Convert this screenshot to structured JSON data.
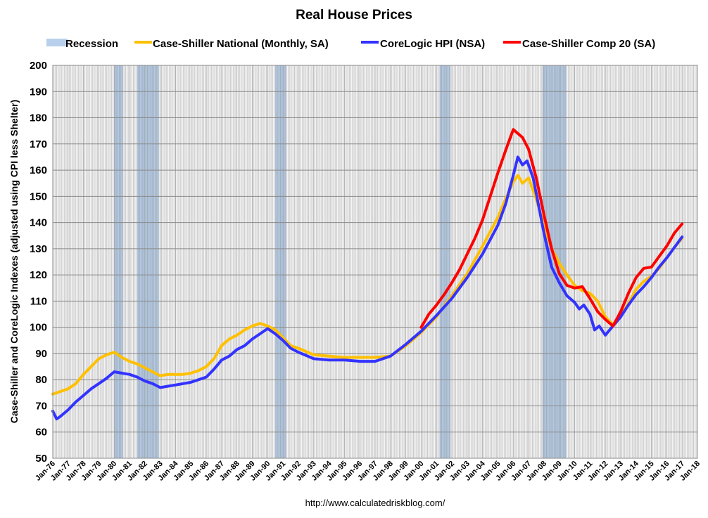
{
  "chart_data": {
    "type": "line",
    "title": "Real House Prices",
    "xlabel": "",
    "ylabel": "Case-Shiller and CoreLogic Indexes (adjusted using CPI less Shelter)",
    "ylim": [
      50,
      200
    ],
    "yticks": [
      50,
      60,
      70,
      80,
      90,
      100,
      110,
      120,
      130,
      140,
      150,
      160,
      170,
      180,
      190,
      200
    ],
    "xlim": [
      1976,
      2018
    ],
    "xtick_labels": [
      "Jan-76",
      "Jan-77",
      "Jan-78",
      "Jan-79",
      "Jan-80",
      "Jan-81",
      "Jan-82",
      "Jan-83",
      "Jan-84",
      "Jan-85",
      "Jan-86",
      "Jan-87",
      "Jan-88",
      "Jan-89",
      "Jan-90",
      "Jan-91",
      "Jan-92",
      "Jan-93",
      "Jan-94",
      "Jan-95",
      "Jan-96",
      "Jan-97",
      "Jan-98",
      "Jan-99",
      "Jan-00",
      "Jan-01",
      "Jan-02",
      "Jan-03",
      "Jan-04",
      "Jan-05",
      "Jan-06",
      "Jan-07",
      "Jan-08",
      "Jan-09",
      "Jan-10",
      "Jan-11",
      "Jan-12",
      "Jan-13",
      "Jan-14",
      "Jan-15",
      "Jan-16",
      "Jan-17",
      "Jan-18"
    ],
    "grid": true,
    "legend_position": "top",
    "source": "http://www.calculatedriskblog.com/",
    "recessions": {
      "name": "Recession",
      "color": "#b8d0ec",
      "periods": [
        [
          1980.0,
          1980.58
        ],
        [
          1981.5,
          1982.9
        ],
        [
          1990.5,
          1991.2
        ],
        [
          2001.2,
          2001.9
        ],
        [
          2007.9,
          2009.45
        ]
      ]
    },
    "series": [
      {
        "name": "Case-Shiller National (Monthly, SA)",
        "color": "#ffc000",
        "x": [
          1976,
          1976.5,
          1977,
          1977.5,
          1978,
          1978.5,
          1979,
          1979.5,
          1980,
          1980.5,
          1981,
          1981.5,
          1982,
          1982.5,
          1983,
          1983.5,
          1984,
          1984.5,
          1985,
          1985.5,
          1986,
          1986.5,
          1987,
          1987.5,
          1988,
          1988.5,
          1989,
          1989.5,
          1990,
          1990.5,
          1991,
          1991.5,
          1992,
          1993,
          1994,
          1995,
          1996,
          1997,
          1998,
          1999,
          2000,
          2001,
          2002,
          2003,
          2004,
          2005,
          2005.5,
          2006,
          2006.3,
          2006.6,
          2007,
          2007.5,
          2008,
          2008.5,
          2009,
          2009.5,
          2010,
          2010.5,
          2011,
          2011.5,
          2012,
          2012.5,
          2013,
          2013.5,
          2014,
          2014.5,
          2015,
          2015.5,
          2016,
          2016.5,
          2017
        ],
        "values": [
          74.5,
          75.5,
          76.5,
          78.5,
          82,
          85,
          88,
          89.5,
          90.5,
          88.5,
          87,
          86,
          84.5,
          83,
          81.5,
          82,
          82,
          82,
          82.5,
          83.5,
          85,
          88,
          93,
          95.5,
          97,
          99,
          100.5,
          101.5,
          100.5,
          99,
          96,
          93,
          92,
          89.5,
          89,
          88.5,
          88.5,
          88.5,
          89,
          93,
          98,
          104,
          112,
          120.5,
          131,
          142,
          149,
          155.5,
          158,
          155,
          157,
          149,
          139,
          130,
          124.5,
          120,
          116,
          114,
          113,
          110,
          104,
          101,
          104.5,
          109,
          114.5,
          117.5,
          119.5,
          122.5,
          126.5,
          130.5,
          134
        ]
      },
      {
        "name": "CoreLogic HPI (NSA)",
        "color": "#3333ff",
        "x": [
          1976,
          1976.25,
          1976.5,
          1977,
          1977.5,
          1978,
          1978.5,
          1979,
          1979.5,
          1980,
          1980.5,
          1981,
          1981.5,
          1982,
          1982.5,
          1983,
          1983.5,
          1984,
          1984.5,
          1985,
          1985.5,
          1986,
          1986.5,
          1987,
          1987.5,
          1988,
          1988.5,
          1989,
          1989.5,
          1990,
          1990.5,
          1991,
          1991.5,
          1992,
          1993,
          1994,
          1995,
          1996,
          1997,
          1998,
          1999,
          2000,
          2001,
          2002,
          2003,
          2004,
          2005,
          2005.5,
          2006,
          2006.3,
          2006.6,
          2006.9,
          2007.3,
          2007.6,
          2008,
          2008.5,
          2009,
          2009.5,
          2010,
          2010.3,
          2010.6,
          2011,
          2011.3,
          2011.6,
          2012,
          2012.5,
          2013,
          2013.5,
          2014,
          2014.5,
          2015,
          2015.5,
          2016,
          2016.5,
          2017
        ],
        "values": [
          68,
          65,
          66,
          68.5,
          71.5,
          74,
          76.5,
          78.5,
          80.5,
          83,
          82.5,
          82,
          81,
          79.5,
          78.5,
          77,
          77.5,
          78,
          78.5,
          79,
          80,
          81,
          84,
          87.5,
          89,
          91.5,
          93,
          95.5,
          97.5,
          99.5,
          97.5,
          95,
          92,
          90.5,
          88,
          87.5,
          87.5,
          87,
          87,
          89,
          93.5,
          98.5,
          104.5,
          111,
          119,
          128,
          139,
          147,
          158,
          165,
          162,
          163.5,
          157,
          148,
          136,
          123,
          117,
          112,
          109.5,
          107,
          108.5,
          105,
          99,
          100.5,
          97,
          100.5,
          104,
          108.5,
          112.5,
          115.5,
          119,
          123,
          126.5,
          130.5,
          134.5
        ]
      },
      {
        "name": "Case-Shiller Comp 20  (SA)",
        "color": "#ff0000",
        "x": [
          2000,
          2000.5,
          2001,
          2001.5,
          2002,
          2002.5,
          2003,
          2003.5,
          2004,
          2004.5,
          2005,
          2005.5,
          2006,
          2006.3,
          2006.6,
          2007,
          2007.5,
          2008,
          2008.5,
          2009,
          2009.5,
          2010,
          2010.5,
          2011,
          2011.5,
          2012,
          2012.5,
          2013,
          2013.5,
          2014,
          2014.5,
          2015,
          2015.5,
          2016,
          2016.5,
          2017
        ],
        "values": [
          100,
          105,
          108.5,
          112.5,
          117,
          122,
          128,
          134,
          141,
          150,
          159,
          167.5,
          175.5,
          174,
          172.5,
          168,
          157,
          143,
          130,
          120.5,
          116,
          115,
          115.5,
          111,
          106,
          103,
          100.5,
          106,
          113,
          119,
          122.5,
          123,
          127,
          131,
          136,
          139.5
        ]
      }
    ]
  }
}
